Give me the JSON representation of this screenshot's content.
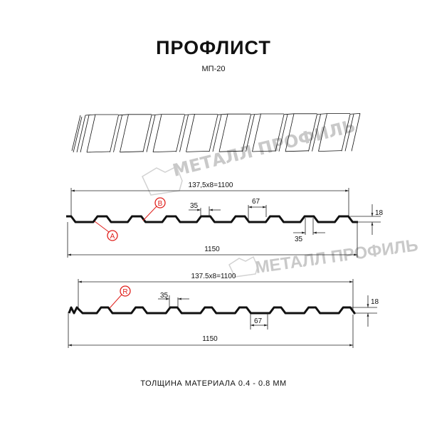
{
  "title": "ПРОФЛИСТ",
  "subtitle": "МП-20",
  "watermark": "МЕТАЛЛ ПРОФИЛЬ",
  "profile_a": {
    "pitch_label": "137,5х8=1100",
    "width_label": "1150",
    "crest_label": "35",
    "top_label": "67",
    "valley_label": "35",
    "height_label": "18",
    "callouts": [
      "A",
      "B"
    ]
  },
  "profile_r": {
    "pitch_label": "137.5x8=1100",
    "width_label": "1150",
    "crest_label": "35",
    "valley_label": "67",
    "height_label": "18",
    "callouts": [
      "R"
    ]
  },
  "footer": "ТОЛЩИНА МАТЕРИАЛА 0.4 - 0.8 ММ",
  "colors": {
    "callout": "#e0201c",
    "watermark": "#c9c9c9",
    "line": "#111111"
  }
}
